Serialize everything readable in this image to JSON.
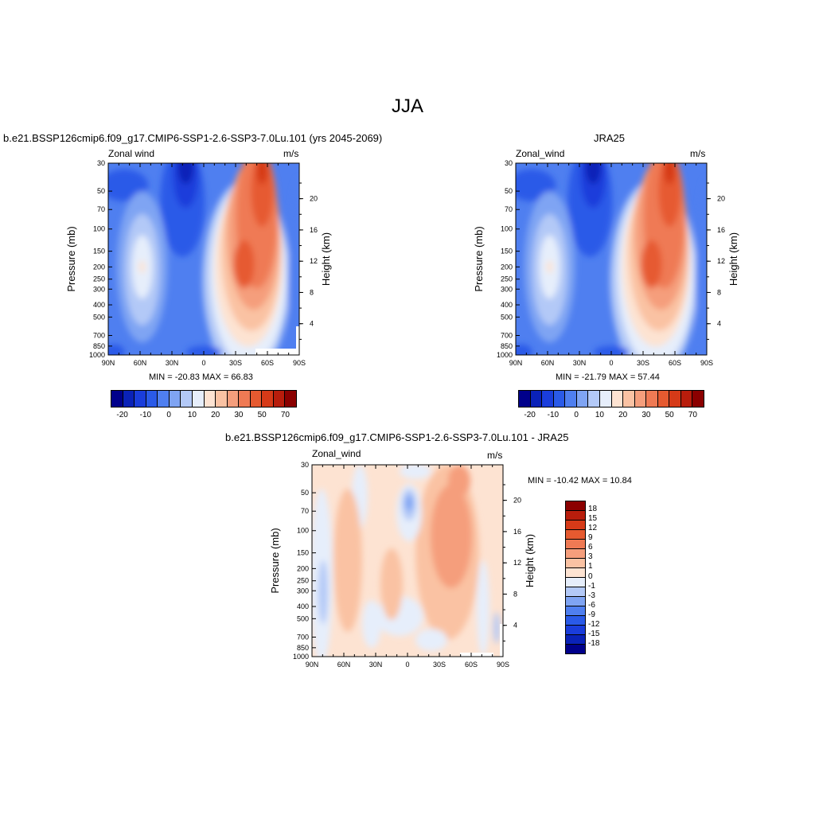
{
  "title": "JJA",
  "palette": {
    "abs": [
      "#00008b",
      "#0a22b8",
      "#1a3ddb",
      "#2a5ae8",
      "#4f7ff0",
      "#7fa4f3",
      "#b3c9f7",
      "#e6eefb",
      "#fde3d2",
      "#fac2a3",
      "#f59e7c",
      "#ef7a54",
      "#e65a30",
      "#d63a18",
      "#b81d0c",
      "#8b0000"
    ],
    "diff": [
      "#00008b",
      "#0a22b8",
      "#1a3ddb",
      "#2a5ae8",
      "#4f7ff0",
      "#7fa4f3",
      "#b3c9f7",
      "#e6eefb",
      "#fde3d2",
      "#fac2a3",
      "#f59e7c",
      "#ef7a54",
      "#e65a30",
      "#d63a18",
      "#b81d0c",
      "#8b0000"
    ]
  },
  "panels": {
    "model": {
      "title": "b.e21.BSSP126cmip6.f09_g17.CMIP6-SSP1-2.6-SSP3-7.0Lu.101 (yrs 2045-2069)",
      "left_label": "Zonal wind",
      "right_label": "m/s",
      "stats": "MIN = -20.83  MAX =  66.83"
    },
    "obs": {
      "title": "JRA25",
      "left_label": "Zonal_wind",
      "right_label": "m/s",
      "stats": "MIN = -21.79  MAX =  57.44"
    },
    "diff": {
      "title": "b.e21.BSSP126cmip6.f09_g17.CMIP6-SSP1-2.6-SSP3-7.0Lu.101 - JRA25",
      "left_label": "Zonal_wind",
      "right_label": "m/s",
      "stats": "MIN = -10.42  MAX =  10.84"
    }
  },
  "axes": {
    "ylabel": "Pressure (mb)",
    "y2label": "Height (km)",
    "x_ticks": [
      "90N",
      "60N",
      "30N",
      "0",
      "30S",
      "60S",
      "90S"
    ],
    "p_ticks": [
      "30",
      "50",
      "70",
      "100",
      "150",
      "200",
      "250",
      "300",
      "400",
      "500",
      "700",
      "850",
      "1000"
    ],
    "h_ticks": [
      "20",
      "16",
      "12",
      "8",
      "4"
    ]
  },
  "colorbars": {
    "abs_labels": [
      "-20",
      "-10",
      "0",
      "10",
      "20",
      "30",
      "50",
      "70"
    ],
    "diff_labels": [
      "18",
      "15",
      "12",
      "9",
      "6",
      "3",
      "1",
      "0",
      "-1",
      "-3",
      "-6",
      "-9",
      "-12",
      "-15",
      "-18"
    ]
  },
  "chart_data": [
    {
      "type": "heatmap",
      "title": "b.e21.BSSP126cmip6.f09_g17.CMIP6-SSP1-2.6-SSP3-7.0Lu.101 (yrs 2045-2069)",
      "variable": "Zonal wind",
      "units": "m/s",
      "xlabel": "",
      "ylabel": "Pressure (mb)",
      "y2label": "Height (km)",
      "x_range": [
        "90N",
        "90S"
      ],
      "y_range_mb": [
        30,
        1000
      ],
      "y_scale": "log",
      "min": -20.83,
      "max": 66.83,
      "features": [
        {
          "lat": 17,
          "p": 35,
          "u": -20
        },
        {
          "lat": 57,
          "p": 200,
          "u": 15
        },
        {
          "lat": -38,
          "p": 220,
          "u": 55
        },
        {
          "lat": -50,
          "p": 40,
          "u": 66
        },
        {
          "lat": -5,
          "p": 700,
          "u": -5
        }
      ]
    },
    {
      "type": "heatmap",
      "title": "JRA25",
      "variable": "Zonal_wind",
      "units": "m/s",
      "xlabel": "",
      "ylabel": "Pressure (mb)",
      "y2label": "Height (km)",
      "x_range": [
        "90N",
        "90S"
      ],
      "y_range_mb": [
        30,
        1000
      ],
      "y_scale": "log",
      "min": -21.79,
      "max": 57.44,
      "features": [
        {
          "lat": 17,
          "p": 35,
          "u": -21
        },
        {
          "lat": 57,
          "p": 200,
          "u": 14
        },
        {
          "lat": -38,
          "p": 200,
          "u": 50
        },
        {
          "lat": -50,
          "p": 40,
          "u": 57
        }
      ]
    },
    {
      "type": "heatmap",
      "title": "b.e21.BSSP126cmip6.f09_g17.CMIP6-SSP1-2.6-SSP3-7.0Lu.101 - JRA25",
      "variable": "Zonal_wind",
      "units": "m/s",
      "xlabel": "",
      "ylabel": "Pressure (mb)",
      "y2label": "Height (km)",
      "x_range": [
        "90N",
        "90S"
      ],
      "y_range_mb": [
        30,
        1000
      ],
      "y_scale": "log",
      "min": -10.42,
      "max": 10.84,
      "features": [
        {
          "lat": -50,
          "p": 100,
          "u": 10
        },
        {
          "lat": 0,
          "p": 70,
          "u": -8
        },
        {
          "lat": 80,
          "p": 300,
          "u": -3
        },
        {
          "lat": 40,
          "p": 200,
          "u": 4
        }
      ]
    }
  ]
}
